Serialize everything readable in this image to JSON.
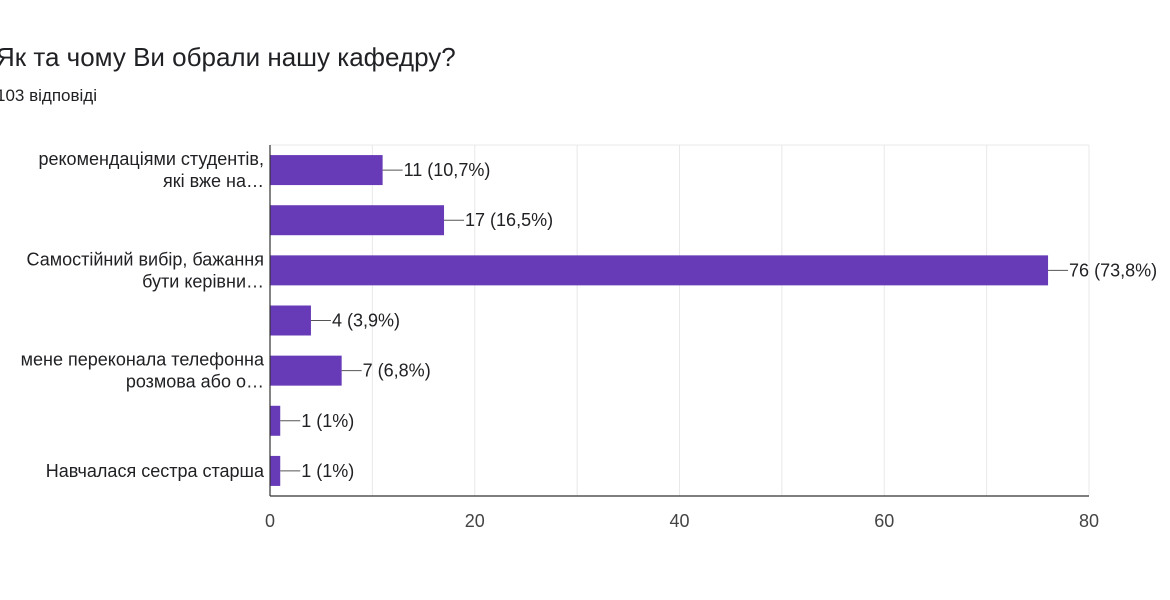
{
  "title": "Як та чому Ви обрали нашу кафедру?",
  "subtitle": "103 відповіді",
  "colors": {
    "bar": "#673ab7",
    "grid": "#e8e8e8",
    "axis": "#333333",
    "leader": "#555555"
  },
  "chart_data": {
    "type": "bar",
    "orientation": "horizontal",
    "categories": [
      [
        "рекомендаціями студентів,",
        "які вже на…"
      ],
      [],
      [
        "Самостійний вибір, бажання",
        "бути керівни…"
      ],
      [],
      [
        "мене переконала телефонна",
        "розмова або о…"
      ],
      [],
      [
        "Навчалася сестра старша"
      ]
    ],
    "values": [
      11,
      17,
      76,
      4,
      7,
      1,
      1
    ],
    "data_labels": [
      "11 (10,7%)",
      "17 (16,5%)",
      "76 (73,8%)",
      "4 (3,9%)",
      "7 (6,8%)",
      "1 (1%)",
      "1 (1%)"
    ],
    "xlim": [
      0,
      80
    ],
    "xticks": [
      0,
      20,
      40,
      60,
      80
    ],
    "grid": true
  }
}
